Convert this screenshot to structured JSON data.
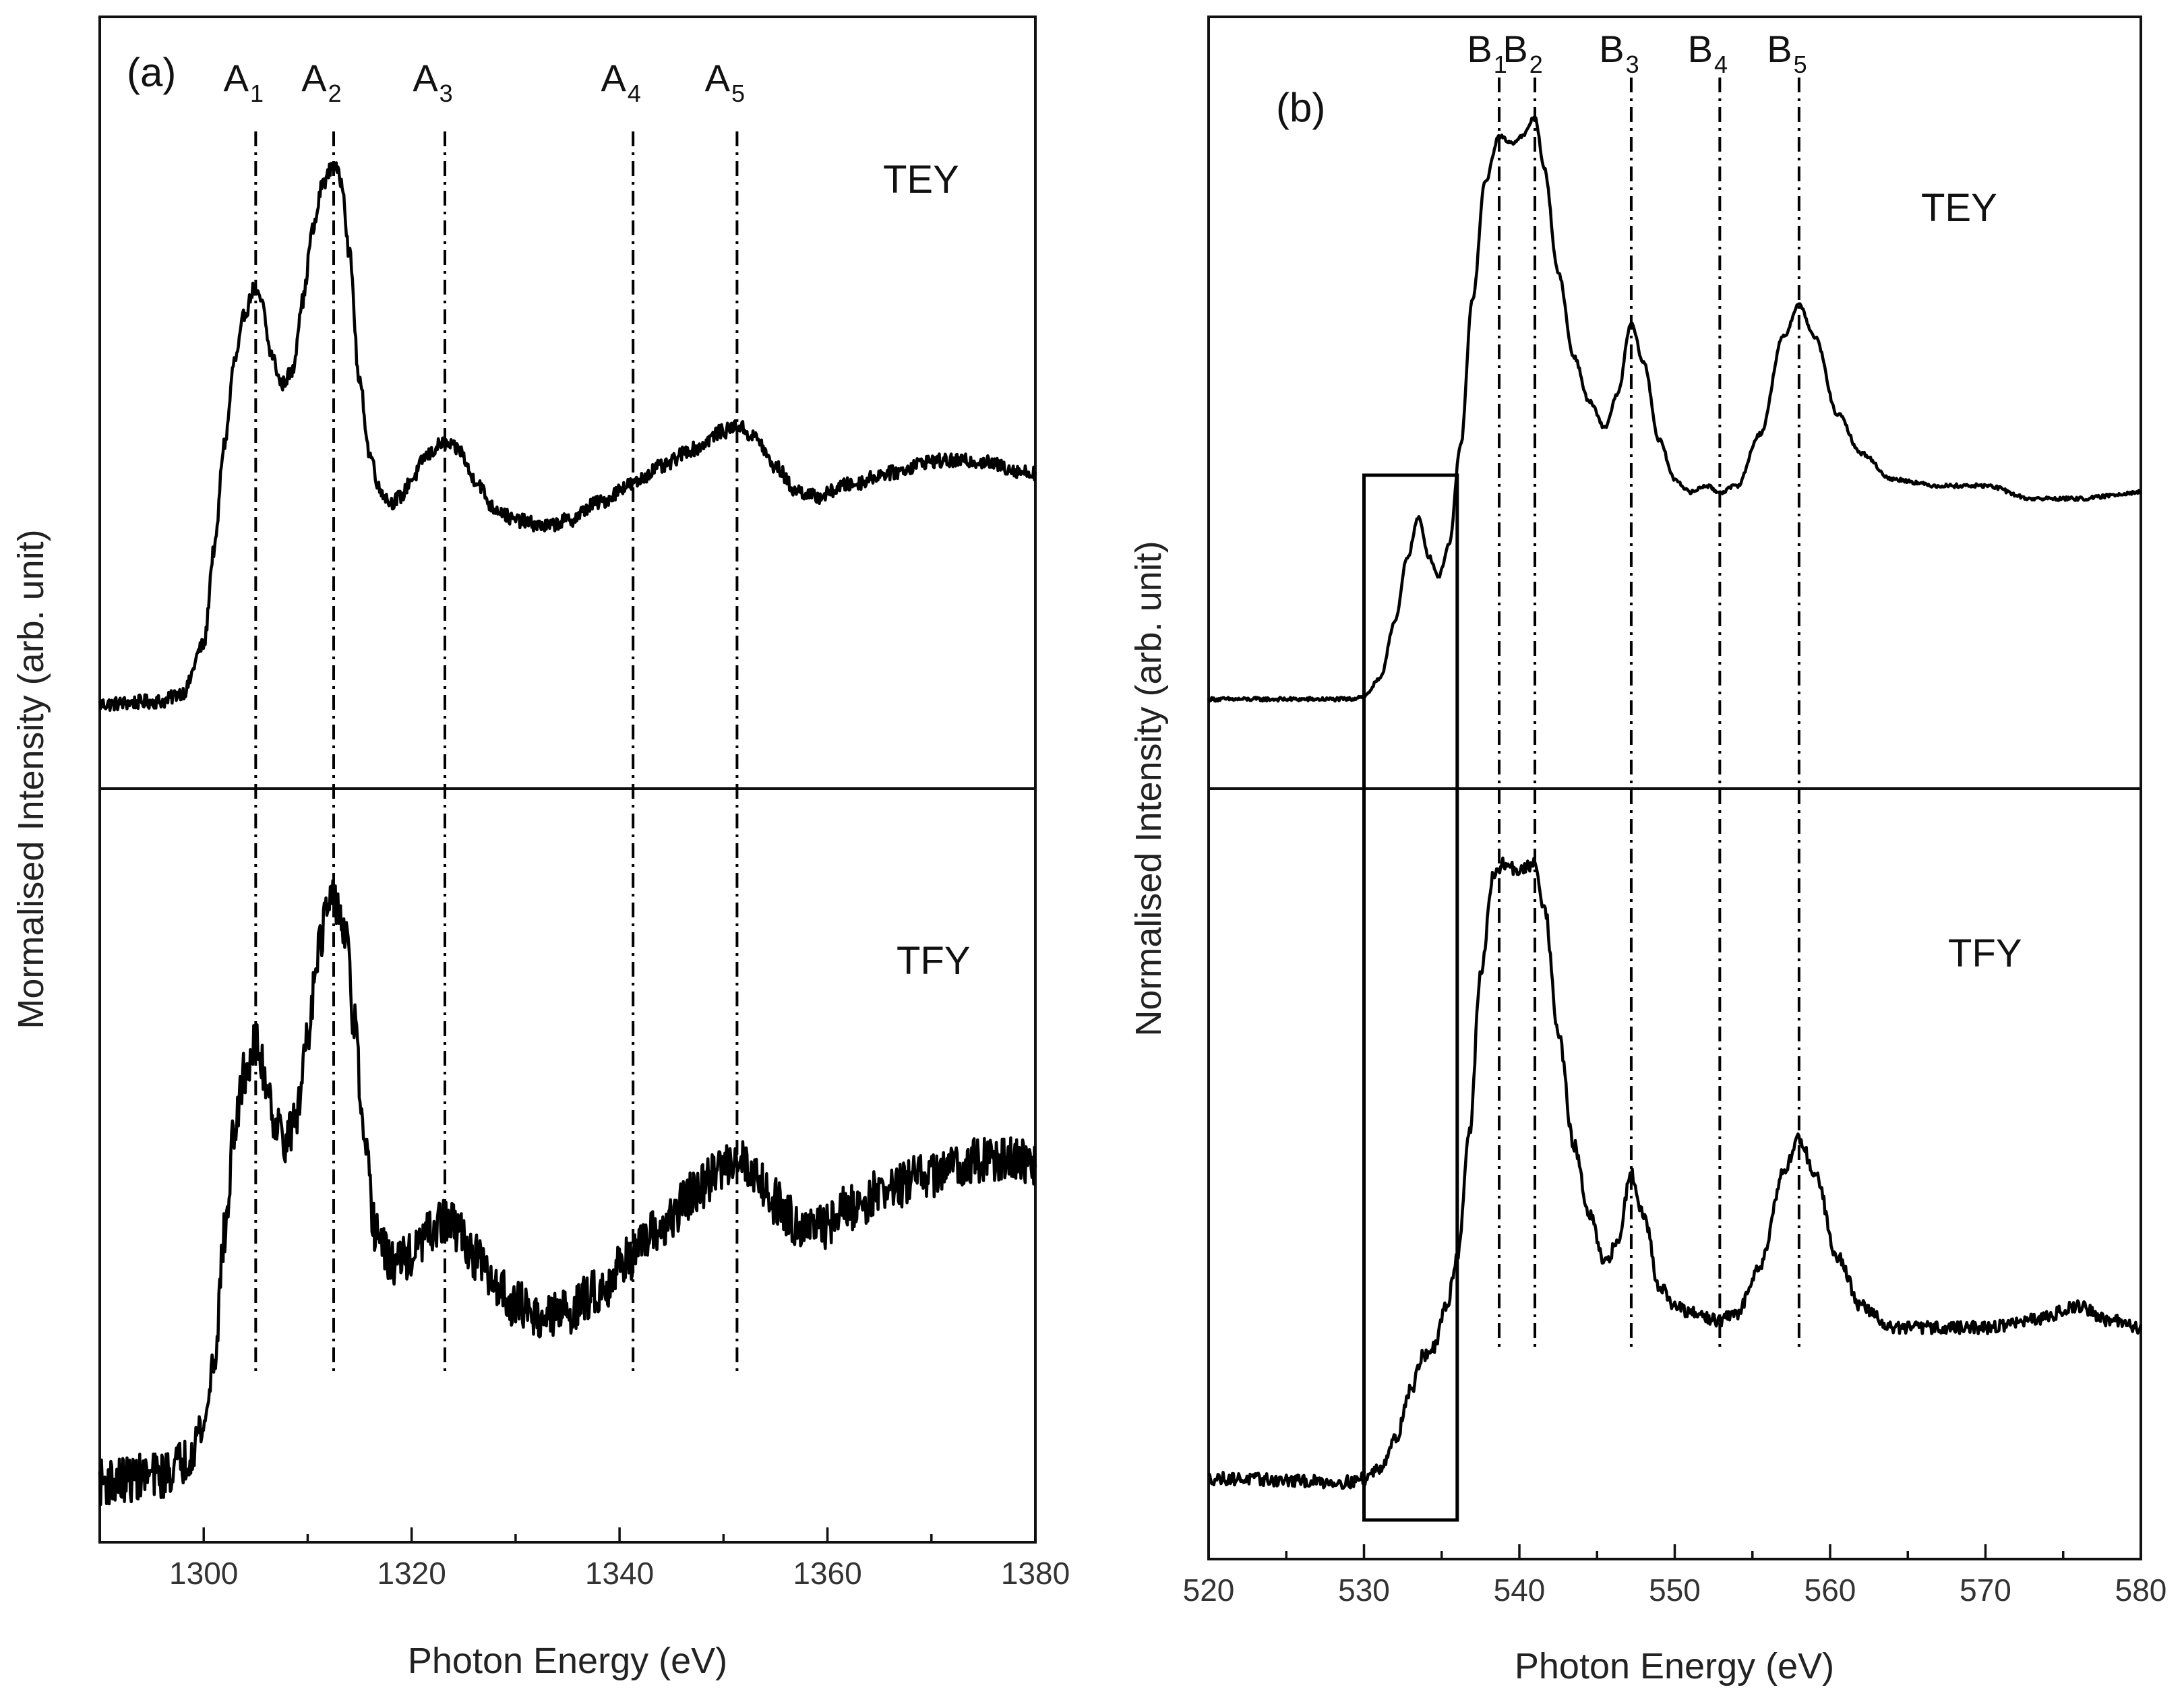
{
  "chart_data": [
    {
      "id": "a",
      "type": "line",
      "panel_label": "(a)",
      "xlabel": "Photon Energy (eV)",
      "ylabel": "Mormalised Intensity (arb. unit)",
      "xlim": [
        1290,
        1380
      ],
      "xticks": [
        1300,
        1320,
        1340,
        1360,
        1380
      ],
      "xtick_labels": [
        "1300",
        "1320",
        "1340",
        "1360",
        "1380"
      ],
      "grid": false,
      "peak_markers": [
        {
          "base": "A",
          "sub": "1",
          "x": 1305
        },
        {
          "base": "A",
          "sub": "2",
          "x": 1312.5
        },
        {
          "base": "A",
          "sub": "3",
          "x": 1323.2
        },
        {
          "base": "A",
          "sub": "4",
          "x": 1341.3
        },
        {
          "base": "A",
          "sub": "5",
          "x": 1351.3
        }
      ],
      "series": [
        {
          "name": "TEY",
          "noise": 0.012,
          "points": [
            [
              1290,
              0.04
            ],
            [
              1296,
              0.045
            ],
            [
              1298,
              0.06
            ],
            [
              1300,
              0.14
            ],
            [
              1301,
              0.3
            ],
            [
              1302,
              0.48
            ],
            [
              1303,
              0.62
            ],
            [
              1304,
              0.7
            ],
            [
              1304.8,
              0.74
            ],
            [
              1305.5,
              0.72
            ],
            [
              1306.5,
              0.63
            ],
            [
              1307.5,
              0.58
            ],
            [
              1308.5,
              0.6
            ],
            [
              1309.5,
              0.72
            ],
            [
              1310.5,
              0.84
            ],
            [
              1311.5,
              0.92
            ],
            [
              1312.5,
              0.95
            ],
            [
              1313.3,
              0.92
            ],
            [
              1314,
              0.8
            ],
            [
              1315,
              0.58
            ],
            [
              1316,
              0.46
            ],
            [
              1317,
              0.4
            ],
            [
              1318,
              0.38
            ],
            [
              1319,
              0.39
            ],
            [
              1320,
              0.42
            ],
            [
              1321.5,
              0.46
            ],
            [
              1323,
              0.48
            ],
            [
              1324.5,
              0.47
            ],
            [
              1326,
              0.42
            ],
            [
              1328,
              0.37
            ],
            [
              1330,
              0.35
            ],
            [
              1333,
              0.34
            ],
            [
              1335,
              0.35
            ],
            [
              1338,
              0.38
            ],
            [
              1341,
              0.41
            ],
            [
              1344,
              0.44
            ],
            [
              1347,
              0.47
            ],
            [
              1350,
              0.5
            ],
            [
              1351.3,
              0.51
            ],
            [
              1353,
              0.49
            ],
            [
              1355,
              0.44
            ],
            [
              1357,
              0.4
            ],
            [
              1359,
              0.39
            ],
            [
              1362,
              0.41
            ],
            [
              1366,
              0.43
            ],
            [
              1370,
              0.45
            ],
            [
              1374,
              0.45
            ],
            [
              1380,
              0.43
            ]
          ]
        },
        {
          "name": "TFY",
          "noise": 0.034,
          "points": [
            [
              1290,
              0.08
            ],
            [
              1296,
              0.09
            ],
            [
              1298,
              0.11
            ],
            [
              1300,
              0.16
            ],
            [
              1301,
              0.26
            ],
            [
              1302,
              0.44
            ],
            [
              1303,
              0.6
            ],
            [
              1304,
              0.68
            ],
            [
              1305,
              0.72
            ],
            [
              1306,
              0.67
            ],
            [
              1307,
              0.6
            ],
            [
              1308,
              0.58
            ],
            [
              1309,
              0.62
            ],
            [
              1310,
              0.74
            ],
            [
              1311,
              0.86
            ],
            [
              1312,
              0.92
            ],
            [
              1312.8,
              0.93
            ],
            [
              1313.6,
              0.88
            ],
            [
              1314.5,
              0.75
            ],
            [
              1315.5,
              0.56
            ],
            [
              1316.5,
              0.45
            ],
            [
              1318,
              0.4
            ],
            [
              1320,
              0.41
            ],
            [
              1321.5,
              0.44
            ],
            [
              1323,
              0.46
            ],
            [
              1324.5,
              0.45
            ],
            [
              1326,
              0.41
            ],
            [
              1328,
              0.37
            ],
            [
              1330,
              0.34
            ],
            [
              1333,
              0.32
            ],
            [
              1335,
              0.33
            ],
            [
              1338,
              0.36
            ],
            [
              1341,
              0.41
            ],
            [
              1344,
              0.45
            ],
            [
              1347,
              0.5
            ],
            [
              1350,
              0.54
            ],
            [
              1351.3,
              0.56
            ],
            [
              1353,
              0.53
            ],
            [
              1355,
              0.49
            ],
            [
              1357,
              0.46
            ],
            [
              1359,
              0.45
            ],
            [
              1362,
              0.48
            ],
            [
              1366,
              0.51
            ],
            [
              1370,
              0.53
            ],
            [
              1374,
              0.55
            ],
            [
              1378,
              0.55
            ],
            [
              1380,
              0.54
            ]
          ]
        }
      ]
    },
    {
      "id": "b",
      "type": "line",
      "panel_label": "(b)",
      "xlabel": "Photon Energy (eV)",
      "ylabel": "Normalised Intensity (arb. unit)",
      "xlim": [
        520,
        580
      ],
      "xticks": [
        520,
        530,
        540,
        550,
        560,
        570,
        580
      ],
      "xtick_labels": [
        "520",
        "530",
        "540",
        "550",
        "560",
        "570",
        "580"
      ],
      "grid": false,
      "inset_box": {
        "x0": 530,
        "x1": 536
      },
      "peak_markers": [
        {
          "base": "B",
          "sub": "1",
          "x": 538.7
        },
        {
          "base": "B",
          "sub": "2",
          "x": 541
        },
        {
          "base": "B",
          "sub": "3",
          "x": 547.2
        },
        {
          "base": "B",
          "sub": "4",
          "x": 552.9
        },
        {
          "base": "B",
          "sub": "5",
          "x": 558
        }
      ],
      "series": [
        {
          "name": "TEY",
          "noise": 0.003,
          "points": [
            [
              520,
              0.06
            ],
            [
              529,
              0.06
            ],
            [
              530,
              0.065
            ],
            [
              531,
              0.09
            ],
            [
              532,
              0.18
            ],
            [
              532.8,
              0.28
            ],
            [
              533.5,
              0.34
            ],
            [
              534.2,
              0.28
            ],
            [
              534.8,
              0.25
            ],
            [
              535.5,
              0.3
            ],
            [
              536.2,
              0.45
            ],
            [
              537,
              0.68
            ],
            [
              537.8,
              0.86
            ],
            [
              538.7,
              0.93
            ],
            [
              539.5,
              0.92
            ],
            [
              540.2,
              0.93
            ],
            [
              541,
              0.96
            ],
            [
              541.6,
              0.88
            ],
            [
              542.5,
              0.72
            ],
            [
              543.5,
              0.59
            ],
            [
              544.5,
              0.52
            ],
            [
              545.5,
              0.48
            ],
            [
              546.3,
              0.53
            ],
            [
              547.2,
              0.64
            ],
            [
              548,
              0.58
            ],
            [
              549,
              0.46
            ],
            [
              550,
              0.4
            ],
            [
              551,
              0.38
            ],
            [
              552,
              0.39
            ],
            [
              552.9,
              0.38
            ],
            [
              554,
              0.39
            ],
            [
              555.5,
              0.47
            ],
            [
              557,
              0.62
            ],
            [
              558,
              0.67
            ],
            [
              559,
              0.62
            ],
            [
              560.5,
              0.5
            ],
            [
              562,
              0.44
            ],
            [
              564,
              0.4
            ],
            [
              567,
              0.39
            ],
            [
              570,
              0.39
            ],
            [
              573,
              0.37
            ],
            [
              576,
              0.37
            ],
            [
              580,
              0.38
            ]
          ]
        },
        {
          "name": "TFY",
          "noise": 0.009,
          "points": [
            [
              520,
              0.085
            ],
            [
              529,
              0.08
            ],
            [
              530,
              0.085
            ],
            [
              531,
              0.1
            ],
            [
              532,
              0.14
            ],
            [
              533,
              0.21
            ],
            [
              533.8,
              0.26
            ],
            [
              534.5,
              0.27
            ],
            [
              535.3,
              0.33
            ],
            [
              536,
              0.4
            ],
            [
              536.8,
              0.58
            ],
            [
              537.5,
              0.8
            ],
            [
              538.3,
              0.94
            ],
            [
              539,
              0.96
            ],
            [
              540,
              0.95
            ],
            [
              541,
              0.96
            ],
            [
              541.6,
              0.9
            ],
            [
              542.5,
              0.72
            ],
            [
              543.5,
              0.56
            ],
            [
              544.5,
              0.46
            ],
            [
              545.5,
              0.39
            ],
            [
              546.3,
              0.42
            ],
            [
              547.2,
              0.52
            ],
            [
              548,
              0.46
            ],
            [
              549,
              0.36
            ],
            [
              550,
              0.33
            ],
            [
              551,
              0.32
            ],
            [
              552.9,
              0.31
            ],
            [
              554,
              0.32
            ],
            [
              555.5,
              0.39
            ],
            [
              557,
              0.52
            ],
            [
              558,
              0.57
            ],
            [
              559,
              0.52
            ],
            [
              560.5,
              0.4
            ],
            [
              562,
              0.33
            ],
            [
              564,
              0.3
            ],
            [
              567,
              0.3
            ],
            [
              570,
              0.3
            ],
            [
              573,
              0.31
            ],
            [
              576,
              0.33
            ],
            [
              578,
              0.31
            ],
            [
              580,
              0.3
            ]
          ]
        }
      ]
    }
  ]
}
